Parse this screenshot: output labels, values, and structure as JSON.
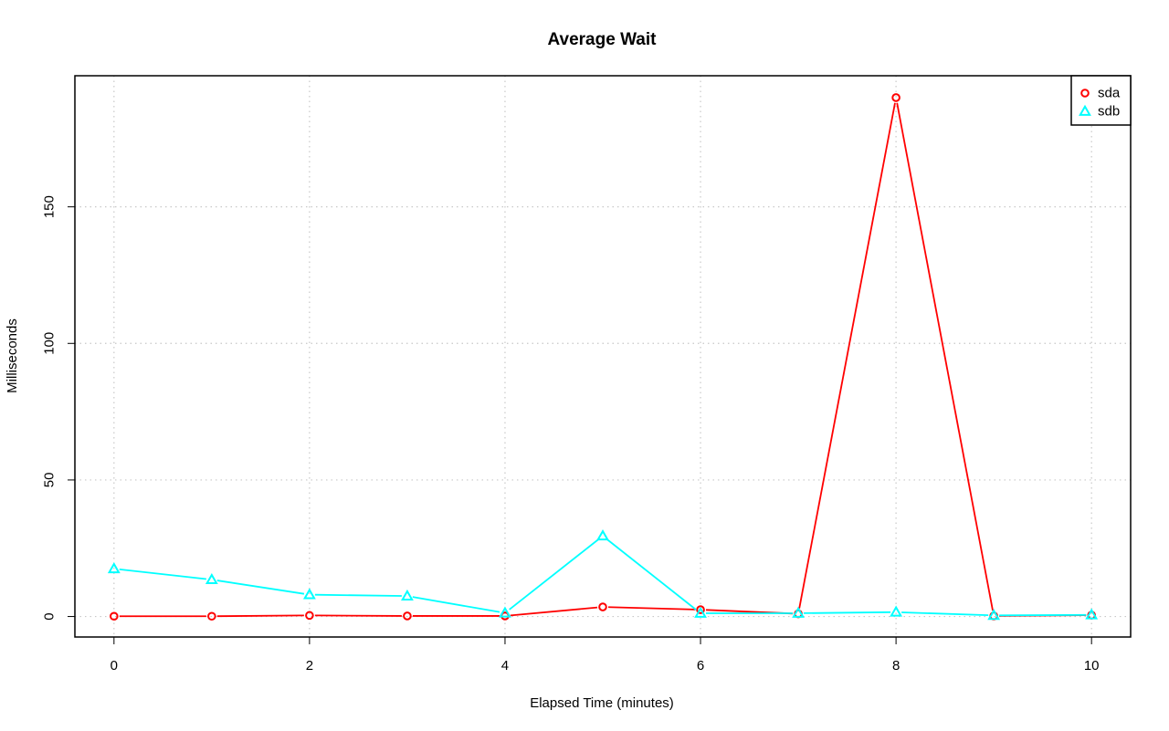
{
  "chart_data": {
    "type": "line",
    "title": "Average Wait",
    "xlabel": "Elapsed Time (minutes)",
    "ylabel": "Milliseconds",
    "x": [
      0,
      1,
      2,
      3,
      4,
      5,
      6,
      7,
      8,
      9,
      10
    ],
    "xlim": [
      -0.4,
      10.4
    ],
    "ylim": [
      -7.5,
      198
    ],
    "xticks": [
      0,
      2,
      4,
      6,
      8,
      10
    ],
    "yticks": [
      0,
      50,
      100,
      150
    ],
    "grid": true,
    "legend_position": "top-right",
    "series": [
      {
        "name": "sda",
        "color": "#ff0000",
        "marker": "circle",
        "values": [
          0.1,
          0.1,
          0.4,
          0.2,
          0.2,
          3.5,
          2.5,
          1.0,
          190.0,
          0.2,
          0.5
        ]
      },
      {
        "name": "sdb",
        "color": "#00ffff",
        "marker": "triangle",
        "values": [
          17.5,
          13.5,
          8.0,
          7.5,
          1.3,
          29.5,
          1.2,
          1.2,
          1.6,
          0.4,
          0.6
        ]
      }
    ]
  }
}
